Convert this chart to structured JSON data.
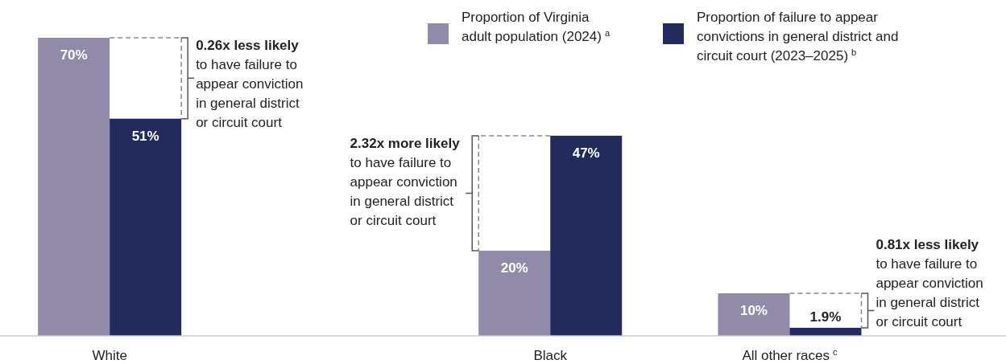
{
  "chart_data": {
    "type": "bar",
    "categories": [
      "White",
      "Black",
      "All other races $^{c}$"
    ],
    "series": [
      {
        "name": "Proportion of Virginia adult population (2024) $^{a}$",
        "color": "#928aa9",
        "values": [
          70,
          20,
          10
        ],
        "value_labels": [
          "70%",
          "20%",
          "10%"
        ]
      },
      {
        "name": "Proportion of failure to appear convictions in general district and circuit court (2023–2025) $^{b}$",
        "color": "#222b5c",
        "values": [
          51,
          47,
          1.9
        ],
        "value_labels": [
          "51%",
          "47%",
          "1.9%"
        ]
      }
    ],
    "annotations": [
      "0.26x less likely to have failure to appear conviction in general district or circuit court",
      "2.32x more likely to have failure to appear conviction in general district or circuit court",
      "0.81x less likely to have failure to appear conviction in general district or circuit court"
    ],
    "legend": "top"
  }
}
